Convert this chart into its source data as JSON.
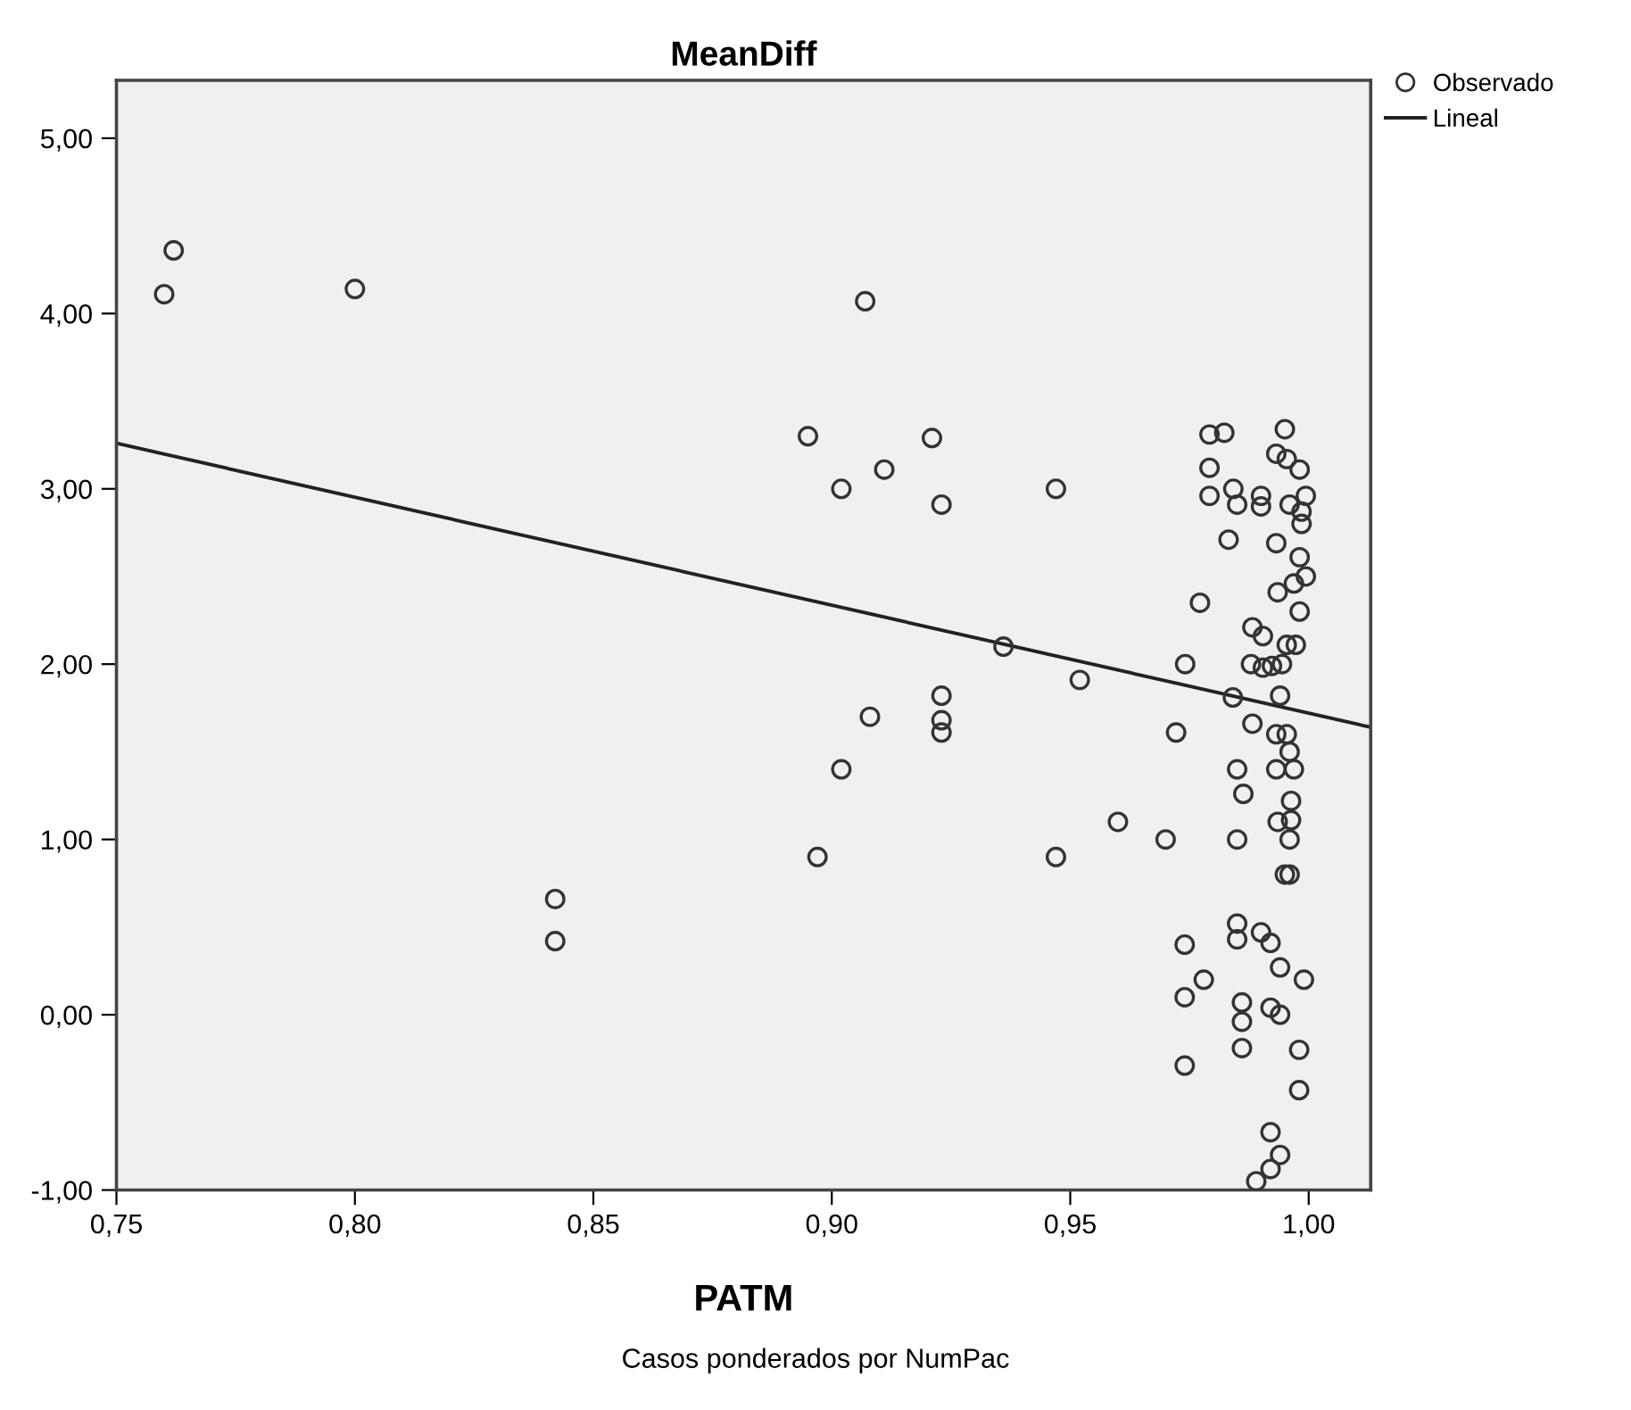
{
  "chart_data": {
    "type": "scatter",
    "title": "MeanDiff",
    "xlabel": "PATM",
    "annotations": [
      "Casos ponderados por NumPac"
    ],
    "xlim": [
      0.75,
      1.013
    ],
    "ylim": [
      -1,
      5.33
    ],
    "xticks": [
      {
        "value": 0.75,
        "label": "0,75"
      },
      {
        "value": 0.8,
        "label": "0,80"
      },
      {
        "value": 0.85,
        "label": "0,85"
      },
      {
        "value": 0.9,
        "label": "0,90"
      },
      {
        "value": 0.95,
        "label": "0,95"
      },
      {
        "value": 1.0,
        "label": "1,00"
      }
    ],
    "yticks": [
      {
        "value": -1,
        "label": "-1,00"
      },
      {
        "value": 0,
        "label": "0,00"
      },
      {
        "value": 1,
        "label": "1,00"
      },
      {
        "value": 2,
        "label": "2,00"
      },
      {
        "value": 3,
        "label": "3,00"
      },
      {
        "value": 4,
        "label": "4,00"
      },
      {
        "value": 5,
        "label": "5,00"
      }
    ],
    "grid": false,
    "legend": "top right",
    "series": [
      {
        "name": "Observado",
        "marker": "circle",
        "color": "#333333",
        "x": [
          0.76,
          0.762,
          0.8,
          0.842,
          0.842,
          0.895,
          0.897,
          0.902,
          0.902,
          0.907,
          0.908,
          0.911,
          0.921,
          0.923,
          0.923,
          0.923,
          0.923,
          0.936,
          0.947,
          0.947,
          0.952,
          0.96,
          0.9792,
          0.9823,
          0.995,
          0.9792,
          0.9932,
          0.9954,
          0.9981,
          0.9792,
          0.9842,
          0.985,
          0.99,
          0.99,
          0.996,
          0.9994,
          0.9985,
          0.9985,
          0.9832,
          0.9932,
          0.9981,
          0.9994,
          0.9969,
          0.9935,
          0.9772,
          0.9981,
          0.9882,
          0.9904,
          0.9954,
          0.9973,
          0.9741,
          0.9879,
          0.9904,
          0.9923,
          0.9944,
          0.9841,
          0.994,
          0.9722,
          0.9882,
          0.9932,
          0.9954,
          0.996,
          0.9932,
          0.9969,
          0.985,
          0.9863,
          0.9963,
          0.9935,
          0.9963,
          0.97,
          0.985,
          0.996,
          0.995,
          0.996,
          0.985,
          0.985,
          0.99,
          0.992,
          0.974,
          0.994,
          0.978,
          0.999,
          0.974,
          0.986,
          0.986,
          0.992,
          0.994,
          0.986,
          0.998,
          0.974,
          0.998,
          0.992,
          0.994,
          0.992,
          0.989
        ],
        "values": [
          4.11,
          4.36,
          4.14,
          0.66,
          0.42,
          3.3,
          0.9,
          3.0,
          1.4,
          4.07,
          1.7,
          3.11,
          3.29,
          2.91,
          1.82,
          1.68,
          1.61,
          2.1,
          3.0,
          0.9,
          1.91,
          1.1,
          3.31,
          3.32,
          3.34,
          3.12,
          3.2,
          3.17,
          3.11,
          2.96,
          3.0,
          2.91,
          2.96,
          2.9,
          2.91,
          2.96,
          2.87,
          2.8,
          2.71,
          2.69,
          2.61,
          2.5,
          2.46,
          2.41,
          2.35,
          2.3,
          2.21,
          2.16,
          2.11,
          2.11,
          2.0,
          2.0,
          1.98,
          1.99,
          2.0,
          1.81,
          1.82,
          1.61,
          1.66,
          1.6,
          1.6,
          1.5,
          1.4,
          1.4,
          1.4,
          1.26,
          1.22,
          1.1,
          1.11,
          1.0,
          1.0,
          1.0,
          0.8,
          0.8,
          0.52,
          0.43,
          0.47,
          0.41,
          0.4,
          0.27,
          0.2,
          0.2,
          0.1,
          0.07,
          -0.04,
          0.04,
          0.0,
          -0.19,
          -0.2,
          -0.29,
          -0.43,
          -0.67,
          -0.8,
          -0.88,
          -0.95
        ]
      },
      {
        "name": "Lineal",
        "type": "line",
        "marker": "none",
        "line_style": "solid",
        "color": "#222222",
        "x": [
          0.75,
          1.013
        ],
        "values": [
          3.26,
          1.64
        ]
      }
    ]
  }
}
